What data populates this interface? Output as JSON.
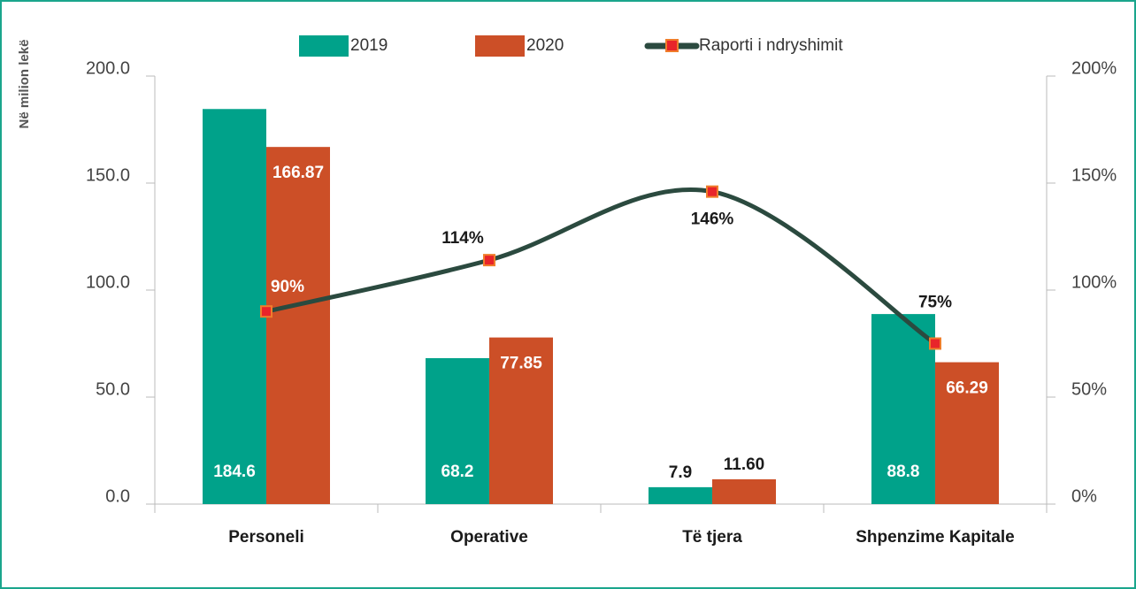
{
  "chart_data": {
    "type": "bar",
    "y_label": "Në milion lekë",
    "categories": [
      "Personeli",
      "Operative",
      "Të tjera",
      "Shpenzime Kapitale"
    ],
    "series": [
      {
        "name": "2019",
        "color": "#00a28a",
        "values": [
          184.6,
          68.2,
          7.9,
          88.8
        ]
      },
      {
        "name": "2020",
        "color": "#cc4f27",
        "values": [
          166.87,
          77.85,
          11.6,
          66.29
        ],
        "value_labels": [
          "166.87",
          "77.85",
          "11.60",
          "66.29"
        ]
      },
      {
        "name": "Raporti i ndryshimit",
        "type": "line",
        "axis": "y2",
        "color": "#2b4a3f",
        "marker_color": "#e8242a",
        "values": [
          90,
          114,
          146,
          75
        ],
        "value_labels": [
          "90%",
          "114%",
          "146%",
          "75%"
        ]
      }
    ],
    "ylim": [
      0,
      200
    ],
    "yticks": [
      {
        "value": 0,
        "label": "0.0"
      },
      {
        "value": 50,
        "label": "50.0"
      },
      {
        "value": 100,
        "label": "100.0"
      },
      {
        "value": 150,
        "label": "150.0"
      },
      {
        "value": 200,
        "label": "200.0"
      }
    ],
    "y2lim": [
      0,
      200
    ],
    "y2ticks": [
      {
        "value": 0,
        "label": "0%"
      },
      {
        "value": 50,
        "label": "50%"
      },
      {
        "value": 100,
        "label": "100%"
      },
      {
        "value": 150,
        "label": "150%"
      },
      {
        "value": 200,
        "label": "200%"
      }
    ],
    "legend": "top"
  }
}
